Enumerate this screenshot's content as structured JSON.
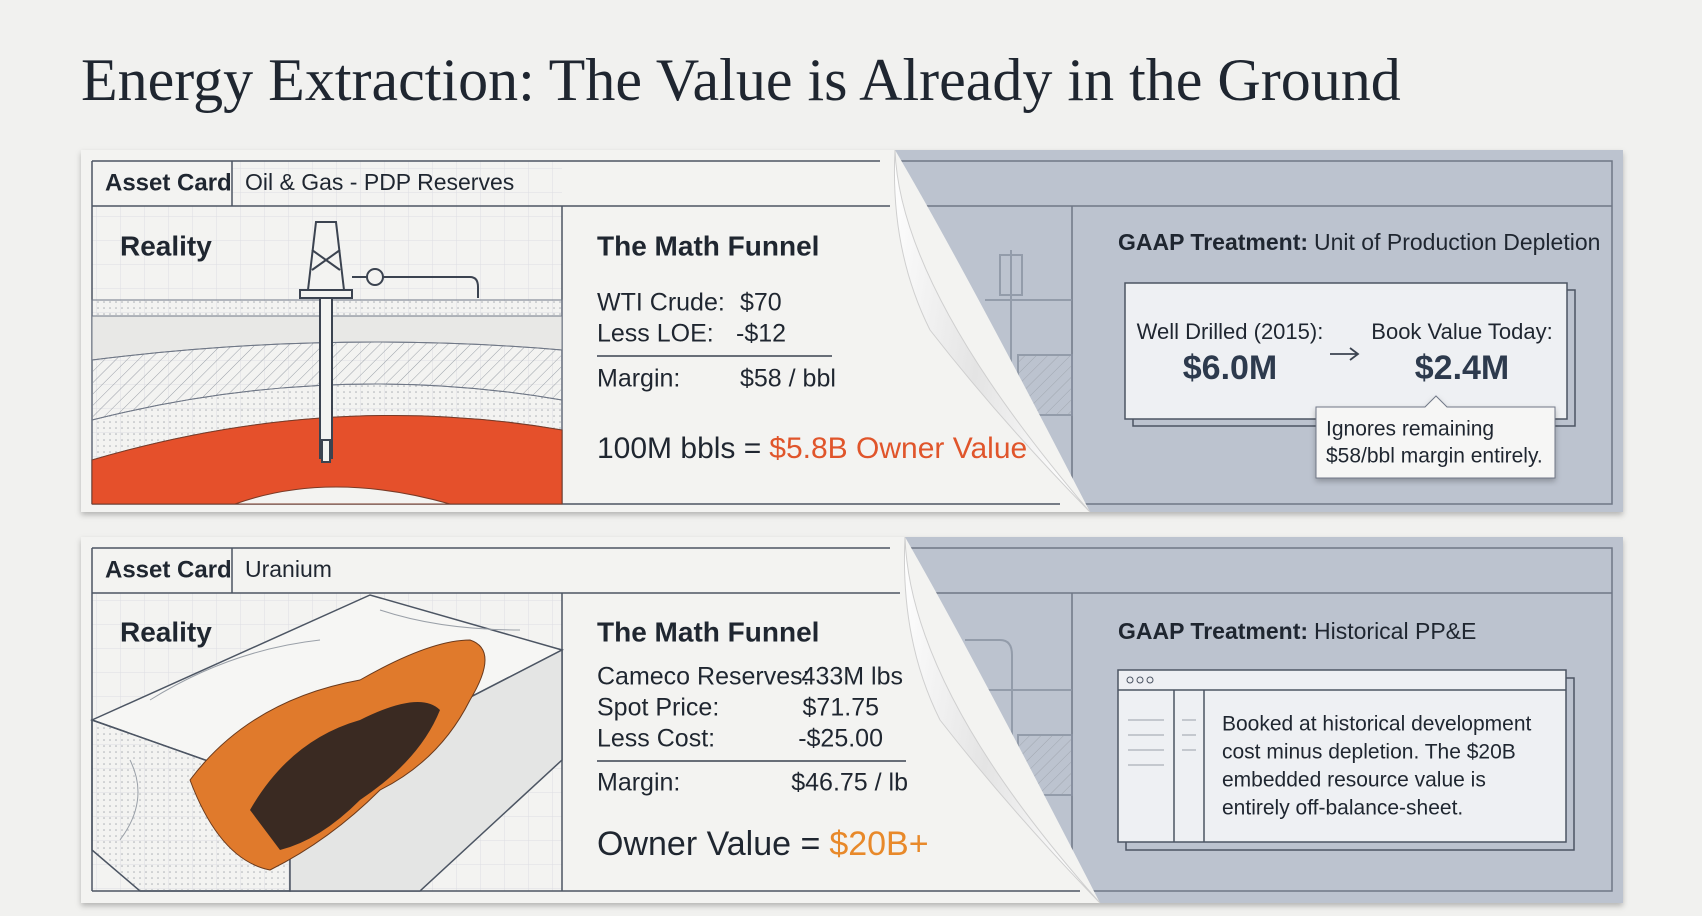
{
  "title": "Energy Extraction: The Value is Already in the Ground",
  "cards": [
    {
      "label": "Asset Card",
      "asset": "Oil & Gas - PDP Reserves",
      "reality": "Reality",
      "funnel": {
        "title": "The Math Funnel",
        "rows": [
          [
            "WTI Crude:",
            "$70"
          ],
          [
            "Less LOE:",
            "-$12"
          ]
        ],
        "margin": [
          "Margin:",
          "$58 / bbl"
        ],
        "result_prefix": "100M bbls =",
        "result_value": "$5.8B Owner Value"
      },
      "gaap": {
        "label": "GAAP Treatment:",
        "method": "Unit of Production Depletion",
        "from_label": "Well Drilled (2015):",
        "from_value": "$6.0M",
        "to_label": "Book Value Today:",
        "to_value": "$2.4M",
        "note": [
          "Ignores remaining",
          "$58/bbl margin entirely."
        ]
      }
    },
    {
      "label": "Asset Card",
      "asset": "Uranium",
      "reality": "Reality",
      "funnel": {
        "title": "The Math Funnel",
        "rows": [
          [
            "Cameco Reserves:",
            "433M lbs"
          ],
          [
            "Spot Price:",
            "$71.75"
          ],
          [
            "Less Cost:",
            "-$25.00"
          ]
        ],
        "margin": [
          "Margin:",
          "$46.75 / lb"
        ],
        "result_prefix": "Owner Value =",
        "result_value": "$20B+"
      },
      "gaap": {
        "label": "GAAP Treatment:",
        "method": "Historical PP&E",
        "note": [
          "Booked at historical development",
          "cost minus depletion. The $20B",
          "embedded resource value is",
          "entirely off-balance-sheet."
        ]
      }
    }
  ]
}
